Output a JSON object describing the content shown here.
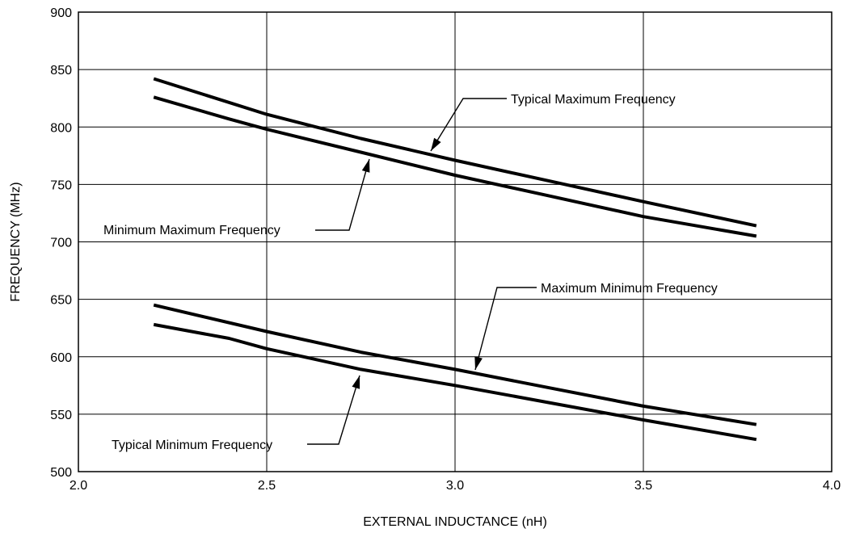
{
  "chart_data": {
    "type": "line",
    "title": "",
    "xlabel": "EXTERNAL INDUCTANCE (nH)",
    "ylabel": "FREQUENCY (MHz)",
    "xlim": [
      2.0,
      4.0
    ],
    "ylim": [
      500,
      900
    ],
    "x_ticks": [
      "2.0",
      "2.5",
      "3.0",
      "3.5",
      "4.0"
    ],
    "y_ticks": [
      "500",
      "550",
      "600",
      "650",
      "700",
      "750",
      "800",
      "850",
      "900"
    ],
    "grid": true,
    "line_color": "#000000",
    "series": [
      {
        "name": "Typical Maximum Frequency",
        "x": [
          2.2,
          2.5,
          2.75,
          3.0,
          3.25,
          3.5,
          3.8
        ],
        "y": [
          842,
          811,
          790,
          771,
          753,
          735,
          714
        ]
      },
      {
        "name": "Minimum Maximum Frequency",
        "x": [
          2.2,
          2.4,
          2.5,
          2.75,
          3.0,
          3.25,
          3.5,
          3.8
        ],
        "y": [
          826,
          807,
          798,
          778,
          758,
          740,
          722,
          705
        ]
      },
      {
        "name": "Maximum Minimum Frequency",
        "x": [
          2.2,
          2.5,
          2.75,
          3.0,
          3.25,
          3.5,
          3.8
        ],
        "y": [
          645,
          622,
          604,
          589,
          573,
          557,
          541
        ]
      },
      {
        "name": "Typical Minimum Frequency",
        "x": [
          2.2,
          2.4,
          2.5,
          2.75,
          3.0,
          3.25,
          3.5,
          3.8
        ],
        "y": [
          628,
          616,
          607,
          589,
          575,
          560,
          545,
          528
        ]
      }
    ],
    "annotations": [
      {
        "text": "Typical Maximum Frequency",
        "series": 0,
        "arrow_target": [
          2.93,
          777
        ]
      },
      {
        "text": "Minimum Maximum Frequency",
        "series": 1,
        "arrow_target": [
          2.81,
          772
        ]
      },
      {
        "text": "Maximum Minimum Frequency",
        "series": 2,
        "arrow_target": [
          3.06,
          584
        ]
      },
      {
        "text": "Typical Minimum Frequency",
        "series": 3,
        "arrow_target": [
          2.77,
          582
        ]
      }
    ]
  }
}
